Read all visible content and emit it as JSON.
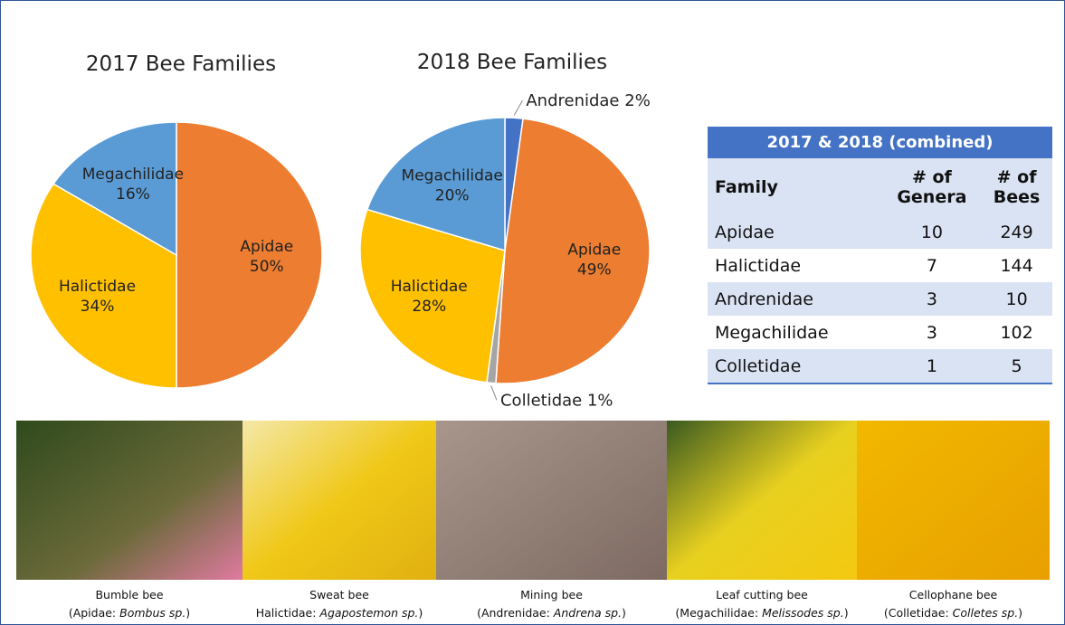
{
  "chart_data": [
    {
      "type": "pie",
      "title": "2017 Bee Families",
      "categories": [
        "Apidae",
        "Halictidae",
        "Megachilidae"
      ],
      "values": [
        50,
        34,
        16
      ],
      "value_labels": [
        "50%",
        "34%",
        "16%"
      ],
      "colors": [
        "#ED7D31",
        "#FFC000",
        "#5B9BD5"
      ]
    },
    {
      "type": "pie",
      "title": "2018 Bee Families",
      "categories": [
        "Andrenidae",
        "Apidae",
        "Colletidae",
        "Halictidae",
        "Megachilidae"
      ],
      "values": [
        2,
        49,
        1,
        28,
        20
      ],
      "value_labels": [
        "2%",
        "49%",
        "1%",
        "28%",
        "20%"
      ],
      "colors": [
        "#4472C4",
        "#ED7D31",
        "#A5A5A5",
        "#FFC000",
        "#5B9BD5"
      ]
    }
  ],
  "table": {
    "title": "2017 & 2018 (combined)",
    "columns": [
      "Family",
      "# of Genera",
      "# of Bees"
    ],
    "rows": [
      [
        "Apidae",
        10,
        249
      ],
      [
        "Halictidae",
        7,
        144
      ],
      [
        "Andrenidae",
        3,
        10
      ],
      [
        "Megachilidae",
        3,
        102
      ],
      [
        "Colletidae",
        1,
        5
      ]
    ]
  },
  "photos": [
    {
      "common": "Bumble bee",
      "taxon_pre": "(Apidae: ",
      "taxon_italic": "Bombus sp.",
      "taxon_post": ")"
    },
    {
      "common": "Sweat bee",
      "taxon_pre": "Halictidae: ",
      "taxon_italic": "Agapostemon sp.",
      "taxon_post": ")"
    },
    {
      "common": "Mining bee",
      "taxon_pre": "(Andrenidae: ",
      "taxon_italic": "Andrena sp.",
      "taxon_post": ")"
    },
    {
      "common": "Leaf cutting bee",
      "taxon_pre": "(Megachilidae: ",
      "taxon_italic": "Melissodes sp.",
      "taxon_post": ")"
    },
    {
      "common": "Cellophane bee",
      "taxon_pre": "(Colletidae: ",
      "taxon_italic": "Colletes sp.",
      "taxon_post": ")"
    }
  ]
}
